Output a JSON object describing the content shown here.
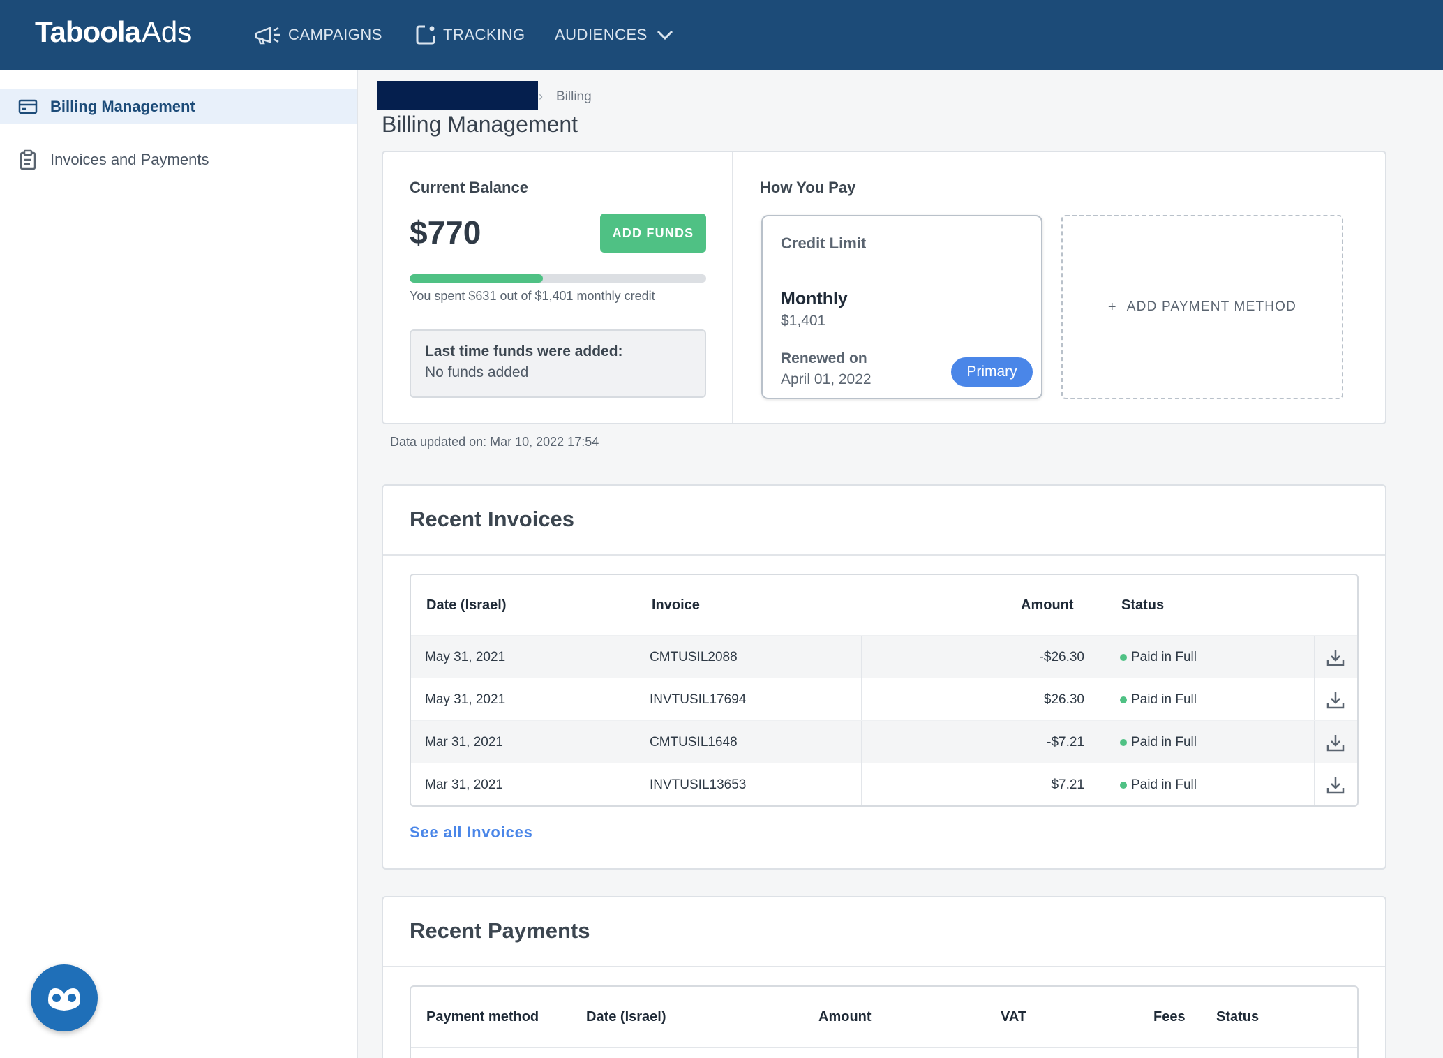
{
  "header": {
    "logo_brand": "Taboola",
    "logo_product": "Ads",
    "nav": [
      {
        "label": "CAMPAIGNS",
        "icon": "megaphone-icon"
      },
      {
        "label": "TRACKING",
        "icon": "tracking-icon"
      },
      {
        "label": "AUDIENCES",
        "icon": "chevron-down-icon"
      }
    ]
  },
  "sidebar": {
    "items": [
      {
        "label": "Billing Management",
        "icon": "credit-card-icon",
        "active": true
      },
      {
        "label": "Invoices and Payments",
        "icon": "clipboard-icon",
        "active": false
      }
    ]
  },
  "breadcrumb": {
    "current": "Billing"
  },
  "page": {
    "title": "Billing Management"
  },
  "balance": {
    "label": "Current Balance",
    "amount": "$770",
    "add_funds_label": "ADD FUNDS",
    "spent_fraction": 0.45,
    "spent_text": "You spent $631 out of $1,401 monthly credit",
    "last_added_label": "Last time funds were added:",
    "last_added_value": "No funds added"
  },
  "how_you_pay": {
    "label": "How You Pay",
    "card": {
      "title": "Credit Limit",
      "period": "Monthly",
      "amount": "$1,401",
      "renewed_label": "Renewed on",
      "renewed_date": "April 01, 2022",
      "badge": "Primary"
    },
    "add_method_label": "ADD PAYMENT METHOD"
  },
  "data_updated": "Data updated on: Mar 10, 2022 17:54",
  "invoices": {
    "title": "Recent Invoices",
    "columns": [
      "Date (Israel)",
      "Invoice",
      "Amount",
      "Status"
    ],
    "rows": [
      {
        "date": "May 31, 2021",
        "invoice": "CMTUSIL2088",
        "amount": "-$26.30",
        "status": "Paid in Full"
      },
      {
        "date": "May 31, 2021",
        "invoice": "INVTUSIL17694",
        "amount": "$26.30",
        "status": "Paid in Full"
      },
      {
        "date": "Mar 31, 2021",
        "invoice": "CMTUSIL1648",
        "amount": "-$7.21",
        "status": "Paid in Full"
      },
      {
        "date": "Mar 31, 2021",
        "invoice": "INVTUSIL13653",
        "amount": "$7.21",
        "status": "Paid in Full"
      }
    ],
    "see_all": "See all Invoices"
  },
  "payments": {
    "title": "Recent Payments",
    "columns": [
      "Payment method",
      "Date (Israel)",
      "Amount",
      "VAT",
      "Fees",
      "Status"
    ]
  },
  "colors": {
    "nav_bg": "#1c4b78",
    "accent_green": "#4fc184",
    "accent_blue": "#4a86e8"
  }
}
